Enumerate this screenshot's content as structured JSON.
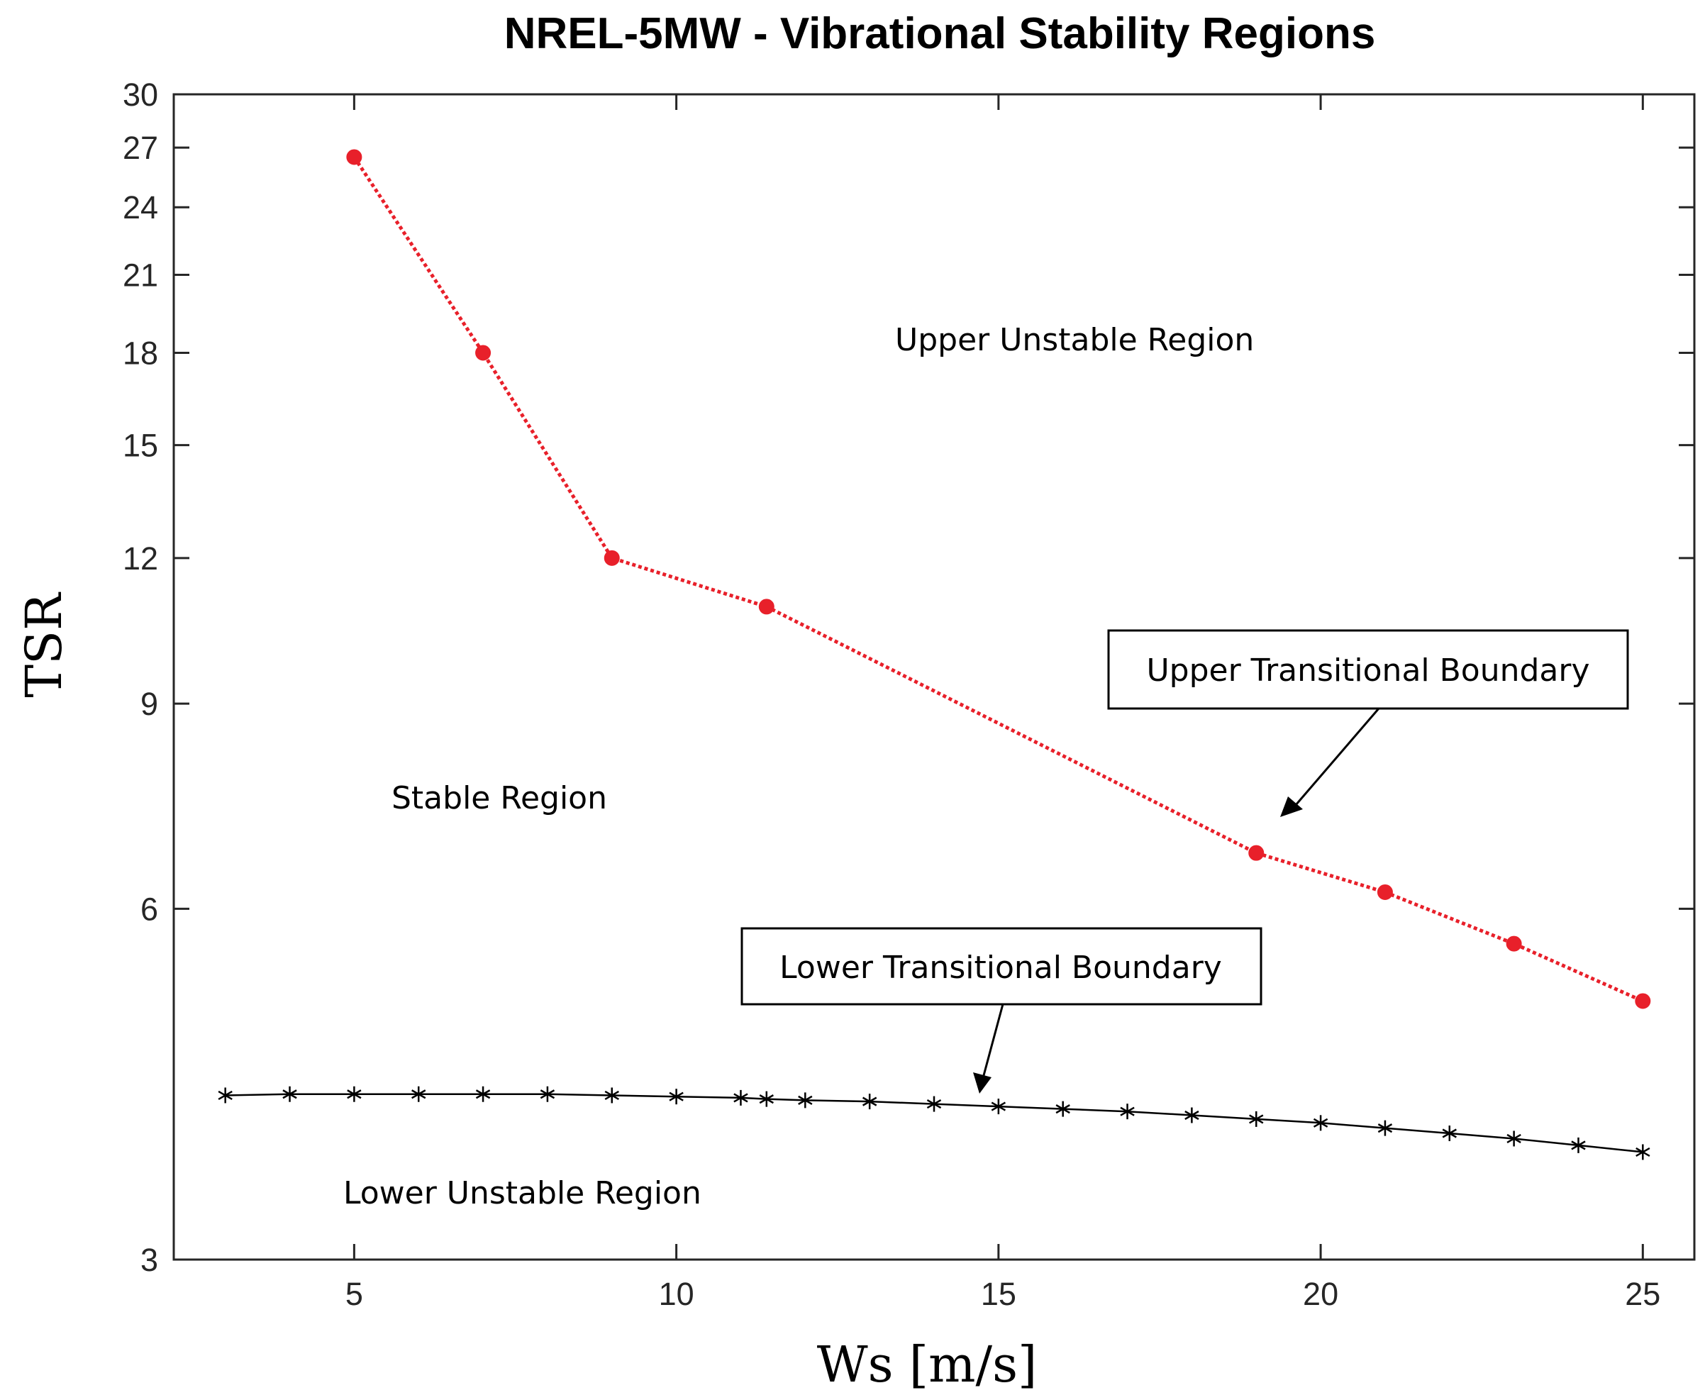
{
  "chart_data": {
    "type": "line",
    "title": "NREL-5MW - Vibrational Stability Regions",
    "xlabel": "Ws [m/s]",
    "ylabel": "TSR",
    "xlim": [
      2.2,
      25.8
    ],
    "ylim": [
      3,
      30
    ],
    "yscale": "log",
    "xticks": [
      5,
      10,
      15,
      20,
      25
    ],
    "yticks": [
      3,
      6,
      9,
      12,
      15,
      18,
      21,
      24,
      27,
      30
    ],
    "series": [
      {
        "name": "Upper Transitional Boundary",
        "color": "#e8202a",
        "line_style": "dotted",
        "marker": "filled-circle",
        "x": [
          5,
          7,
          9,
          11.4,
          19,
          21,
          23,
          25
        ],
        "y": [
          26.5,
          18,
          12,
          10.9,
          6.7,
          6.2,
          5.6,
          5.0
        ]
      },
      {
        "name": "Lower Transitional Boundary",
        "color": "#000000",
        "line_style": "solid",
        "marker": "asterisk",
        "x": [
          3,
          4,
          5,
          6,
          7,
          8,
          9,
          10,
          11,
          11.4,
          12,
          13,
          14,
          15,
          16,
          17,
          18,
          19,
          20,
          21,
          22,
          23,
          24,
          25
        ],
        "y": [
          4.15,
          4.16,
          4.16,
          4.16,
          4.16,
          4.16,
          4.15,
          4.14,
          4.13,
          4.12,
          4.11,
          4.1,
          4.08,
          4.06,
          4.04,
          4.02,
          3.99,
          3.96,
          3.93,
          3.89,
          3.85,
          3.81,
          3.76,
          3.71
        ]
      }
    ],
    "annotations": {
      "upper_unstable": "Upper Unstable Region",
      "stable": "Stable Region",
      "lower_unstable": "Lower Unstable Region",
      "upper_boundary": "Upper Transitional Boundary",
      "lower_boundary": "Lower Transitional Boundary"
    }
  }
}
